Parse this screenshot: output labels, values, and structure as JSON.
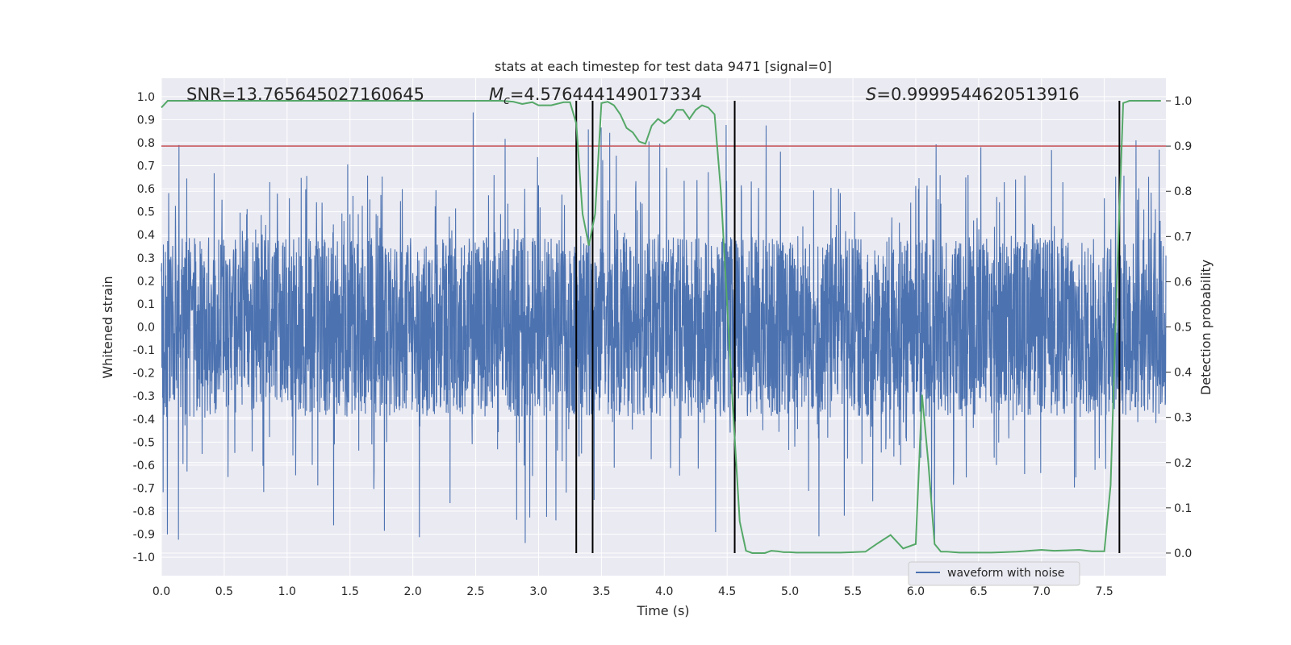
{
  "chart_data": {
    "type": "line",
    "title": "stats at each timestep for test data 9471 [signal=0]",
    "xlabel": "Time (s)",
    "ylabel": "Whitened strain",
    "y2label": "Detection probability",
    "xlim": [
      0.0,
      7.99
    ],
    "ylim": [
      -1.08,
      1.08
    ],
    "y2lim": [
      -0.05,
      1.05
    ],
    "grid": true,
    "xticks": [
      "0.0",
      "0.5",
      "1.0",
      "1.5",
      "2.0",
      "2.5",
      "3.0",
      "3.5",
      "4.0",
      "4.5",
      "5.0",
      "5.5",
      "6.0",
      "6.5",
      "7.0",
      "7.5"
    ],
    "yticks": [
      "1.0",
      "0.9",
      "0.8",
      "0.7",
      "0.6",
      "0.5",
      "0.4",
      "0.3",
      "0.2",
      "0.1",
      "0.0",
      "-0.1",
      "-0.2",
      "-0.3",
      "-0.4",
      "-0.5",
      "-0.6",
      "-0.7",
      "-0.8",
      "-0.9",
      "-1.0"
    ],
    "y2ticks": [
      "1.0",
      "0.9",
      "0.8",
      "0.7",
      "0.6",
      "0.5",
      "0.4",
      "0.3",
      "0.2",
      "0.1",
      "0.0"
    ],
    "annotations": {
      "snr": "SNR=13.765645027160645",
      "mc_symbol": "M",
      "mc_sub": "c",
      "mc_value": "=4.576444149017334",
      "s_symbol": "S",
      "s_value": "=0.9999544620513916"
    },
    "legend": {
      "label": "waveform with noise",
      "placement": "lower-right"
    },
    "threshold": {
      "axis": "y2",
      "value": 0.9
    },
    "vlines": [
      3.3,
      3.43,
      4.56,
      7.62
    ],
    "waveform": {
      "name": "waveform with noise",
      "sample_rate": 500,
      "duration": 8.0,
      "seed": 9471,
      "typical_range": [
        -0.4,
        0.4
      ],
      "peak_range": [
        -0.96,
        1.0
      ]
    },
    "series": [
      {
        "name": "detection probability",
        "axis": "y2",
        "x": [
          0.0,
          0.05,
          0.1,
          0.3,
          0.6,
          0.9,
          1.2,
          1.5,
          1.8,
          2.1,
          2.4,
          2.7,
          2.8,
          2.87,
          2.95,
          3.0,
          3.1,
          3.2,
          3.25,
          3.3,
          3.35,
          3.4,
          3.45,
          3.5,
          3.55,
          3.6,
          3.65,
          3.7,
          3.75,
          3.8,
          3.85,
          3.9,
          3.95,
          4.0,
          4.05,
          4.1,
          4.15,
          4.2,
          4.25,
          4.3,
          4.35,
          4.4,
          4.45,
          4.5,
          4.55,
          4.6,
          4.65,
          4.7,
          4.75,
          4.8,
          4.85,
          4.9,
          4.95,
          5.0,
          5.05,
          5.1,
          5.2,
          5.3,
          5.4,
          5.5,
          5.6,
          5.7,
          5.8,
          5.9,
          6.0,
          6.05,
          6.1,
          6.15,
          6.2,
          6.25,
          6.3,
          6.35,
          6.4,
          6.45,
          6.5,
          6.6,
          6.7,
          6.8,
          6.9,
          7.0,
          7.1,
          7.2,
          7.3,
          7.4,
          7.5,
          7.55,
          7.6,
          7.65,
          7.7,
          7.75,
          7.8,
          7.85,
          7.9,
          7.95
        ],
        "y": [
          0.985,
          1.0,
          1.0,
          1.0,
          1.0,
          1.0,
          1.0,
          1.0,
          1.0,
          1.0,
          1.0,
          1.0,
          0.998,
          0.993,
          0.997,
          0.99,
          0.99,
          0.997,
          0.997,
          0.95,
          0.75,
          0.68,
          0.75,
          0.995,
          0.998,
          0.99,
          0.97,
          0.94,
          0.93,
          0.91,
          0.905,
          0.945,
          0.96,
          0.95,
          0.96,
          0.98,
          0.98,
          0.96,
          0.98,
          0.99,
          0.985,
          0.97,
          0.8,
          0.55,
          0.3,
          0.07,
          0.005,
          0.0,
          0.0,
          0.0,
          0.005,
          0.004,
          0.002,
          0.002,
          0.001,
          0.001,
          0.001,
          0.001,
          0.001,
          0.002,
          0.003,
          0.022,
          0.04,
          0.01,
          0.02,
          0.35,
          0.2,
          0.02,
          0.003,
          0.003,
          0.002,
          0.001,
          0.001,
          0.001,
          0.001,
          0.001,
          0.002,
          0.003,
          0.005,
          0.007,
          0.005,
          0.006,
          0.007,
          0.004,
          0.004,
          0.15,
          0.6,
          0.995,
          1.0,
          1.0,
          1.0,
          1.0,
          1.0,
          1.0
        ]
      }
    ]
  },
  "colors": {
    "waveform": "#4c72b0",
    "probability": "#55a868",
    "threshold": "#c44e52",
    "vline": "#000000",
    "plot_bg": "#eaeaf2",
    "grid": "#ffffff"
  }
}
